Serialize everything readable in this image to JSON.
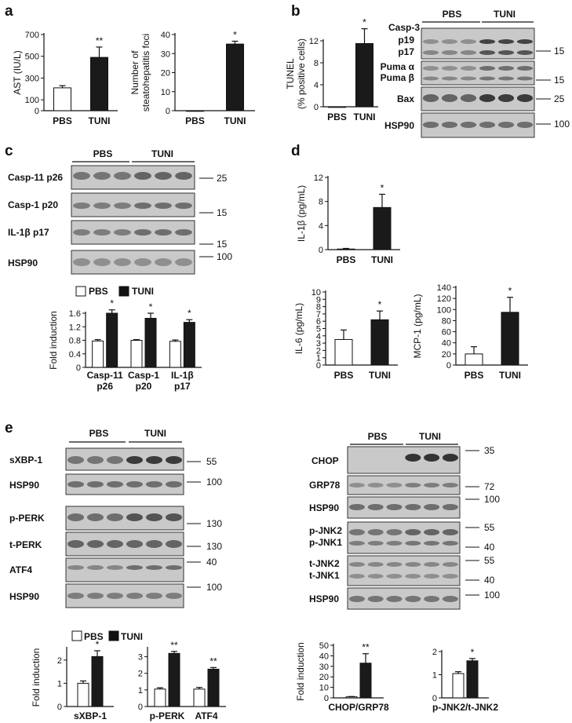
{
  "figure": {
    "panel_labels": [
      "a",
      "b",
      "c",
      "d",
      "e"
    ],
    "groups": {
      "control": "PBS",
      "treatment": "TUNI"
    },
    "mw": {
      "m15": "15",
      "m25": "25",
      "m100": "100",
      "m55": "55",
      "m130": "130",
      "m40": "40",
      "m35": "35",
      "m72": "72"
    },
    "blot_b": {
      "casp3": "Casp-3",
      "p19": "p19",
      "p17": "p17",
      "puma_a": "Puma α",
      "puma_b": "Puma β",
      "bax": "Bax",
      "hsp90": "HSP90"
    },
    "blot_c": {
      "casp11": "Casp-11 p26",
      "casp1": "Casp-1 p20",
      "il1b": "IL-1β p17",
      "hsp90": "HSP90"
    },
    "blot_e_left": {
      "sxbp1": "sXBP-1",
      "hsp90a": "HSP90",
      "pperk": "p-PERK",
      "tperk": "t-PERK",
      "atf4": "ATF4",
      "hsp90b": "HSP90"
    },
    "blot_e_right": {
      "chop": "CHOP",
      "grp78": "GRP78",
      "hsp90a": "HSP90",
      "pjnk2": "p-JNK2",
      "pjnk1": "p-JNK1",
      "tjnk2": "t-JNK2",
      "tjnk1": "t-JNK1",
      "hsp90b": "HSP90"
    },
    "legend": {
      "pbs": "PBS",
      "tuni": "TUNI"
    }
  },
  "chart_data": [
    {
      "id": "a1",
      "type": "bar",
      "ylabel": "AST (IU/L)",
      "categories": [
        "PBS",
        "TUNI"
      ],
      "values": [
        210,
        490
      ],
      "errors": [
        20,
        95
      ],
      "sig": [
        "",
        "**"
      ],
      "ylim": [
        0,
        700
      ],
      "yticks": [
        "0",
        "100",
        "300",
        "500",
        "700"
      ],
      "tickvals": [
        0,
        100,
        300,
        500,
        700
      ]
    },
    {
      "id": "a2",
      "type": "bar",
      "ylabel": "Number of steatohepatitis foci",
      "categories": [
        "PBS",
        "TUNI"
      ],
      "values": [
        0,
        35
      ],
      "errors": [
        0,
        1.5
      ],
      "sig": [
        "",
        "*"
      ],
      "ylim": [
        0,
        40
      ],
      "yticks": [
        "0",
        "10",
        "20",
        "30",
        "40"
      ],
      "tickvals": [
        0,
        10,
        20,
        30,
        40
      ]
    },
    {
      "id": "b1",
      "type": "bar",
      "ylabel": "TUNEL (% positive cells)",
      "categories": [
        "PBS",
        "TUNI"
      ],
      "values": [
        0,
        11.5
      ],
      "errors": [
        0,
        2.7
      ],
      "sig": [
        "",
        "*"
      ],
      "ylim": [
        0,
        12
      ],
      "yticks": [
        "0",
        "4",
        "8",
        "12"
      ],
      "tickvals": [
        0,
        4,
        8,
        12
      ]
    },
    {
      "id": "c1",
      "type": "bar",
      "ylabel": "Fold induction",
      "categories": [
        "Casp-11 p26",
        "Casp-1 p20",
        "IL-1β p17"
      ],
      "series": [
        {
          "name": "PBS",
          "values": [
            0.78,
            0.8,
            0.77
          ],
          "errors": [
            0.04,
            0.02,
            0.04
          ]
        },
        {
          "name": "TUNI",
          "values": [
            1.6,
            1.45,
            1.33
          ],
          "errors": [
            0.1,
            0.15,
            0.08
          ]
        }
      ],
      "sig": [
        "*",
        "*",
        "*"
      ],
      "ylim": [
        0,
        1.6
      ],
      "yticks": [
        "0",
        "0.4",
        "0.8",
        "1.2",
        "1.6"
      ],
      "tickvals": [
        0,
        0.4,
        0.8,
        1.2,
        1.6
      ]
    },
    {
      "id": "d1",
      "type": "bar",
      "ylabel": "IL-1β (pg/mL)",
      "categories": [
        "PBS",
        "TUNI"
      ],
      "values": [
        0.1,
        7
      ],
      "errors": [
        0.1,
        2.2
      ],
      "sig": [
        "",
        "*"
      ],
      "ylim": [
        0,
        12
      ],
      "yticks": [
        "0",
        "4",
        "8",
        "12"
      ],
      "tickvals": [
        0,
        4,
        8,
        12
      ]
    },
    {
      "id": "d2",
      "type": "bar",
      "ylabel": "IL-6 (pg/mL)",
      "categories": [
        "PBS",
        "TUNI"
      ],
      "values": [
        3.5,
        6.2
      ],
      "errors": [
        1.3,
        1.2
      ],
      "sig": [
        "",
        "*"
      ],
      "ylim": [
        0,
        10
      ],
      "yticks": [
        "0",
        "1",
        "2",
        "3",
        "4",
        "5",
        "6",
        "7",
        "8",
        "9",
        "10"
      ],
      "tickvals": [
        0,
        1,
        2,
        3,
        4,
        5,
        6,
        7,
        8,
        9,
        10
      ]
    },
    {
      "id": "d3",
      "type": "bar",
      "ylabel": "MCP-1 (pg/mL)",
      "categories": [
        "PBS",
        "TUNI"
      ],
      "values": [
        20,
        95
      ],
      "errors": [
        13,
        27
      ],
      "sig": [
        "",
        "*"
      ],
      "ylim": [
        0,
        140
      ],
      "yticks": [
        "0",
        "20",
        "40",
        "60",
        "80",
        "100",
        "120",
        "140"
      ],
      "tickvals": [
        0,
        20,
        40,
        60,
        80,
        100,
        120,
        140
      ]
    },
    {
      "id": "e1",
      "type": "bar",
      "ylabel": "Fold induction",
      "categories": [
        "sXBP-1"
      ],
      "series": [
        {
          "name": "PBS",
          "values": [
            1.0
          ],
          "errors": [
            0.1
          ]
        },
        {
          "name": "TUNI",
          "values": [
            2.15
          ],
          "errors": [
            0.25
          ]
        }
      ],
      "sig": [
        "*"
      ],
      "ylim": [
        0,
        2.5
      ],
      "yticks": [
        "0",
        "1",
        "2"
      ],
      "tickvals": [
        0,
        1,
        2
      ]
    },
    {
      "id": "e2",
      "type": "bar",
      "ylabel": "",
      "categories": [
        "p-PERK",
        "ATF4"
      ],
      "series": [
        {
          "name": "PBS",
          "values": [
            1.05,
            1.05
          ],
          "errors": [
            0.08,
            0.1
          ]
        },
        {
          "name": "TUNI",
          "values": [
            3.2,
            2.25
          ],
          "errors": [
            0.12,
            0.1
          ]
        }
      ],
      "sig": [
        "**",
        "**"
      ],
      "ylim": [
        0,
        3.5
      ],
      "yticks": [
        "0",
        "1",
        "2",
        "3"
      ],
      "tickvals": [
        0,
        1,
        2,
        3
      ]
    },
    {
      "id": "e3",
      "type": "bar",
      "ylabel": "Fold induction",
      "categories": [
        "CHOP/GRP78"
      ],
      "series": [
        {
          "name": "PBS",
          "values": [
            1
          ],
          "errors": [
            0.3
          ]
        },
        {
          "name": "TUNI",
          "values": [
            33
          ],
          "errors": [
            9
          ]
        }
      ],
      "sig": [
        "**"
      ],
      "ylim": [
        0,
        50
      ],
      "yticks": [
        "0",
        "10",
        "20",
        "30",
        "40",
        "50"
      ],
      "tickvals": [
        0,
        10,
        20,
        30,
        40,
        50
      ]
    },
    {
      "id": "e4",
      "type": "bar",
      "ylabel": "",
      "categories": [
        "p-JNK2/t-JNK2"
      ],
      "series": [
        {
          "name": "PBS",
          "values": [
            1.05
          ],
          "errors": [
            0.08
          ]
        },
        {
          "name": "TUNI",
          "values": [
            1.6
          ],
          "errors": [
            0.1
          ]
        }
      ],
      "sig": [
        "*"
      ],
      "ylim": [
        0,
        2
      ],
      "yticks": [
        "0",
        "1",
        "2"
      ],
      "tickvals": [
        0,
        1,
        2
      ]
    }
  ]
}
